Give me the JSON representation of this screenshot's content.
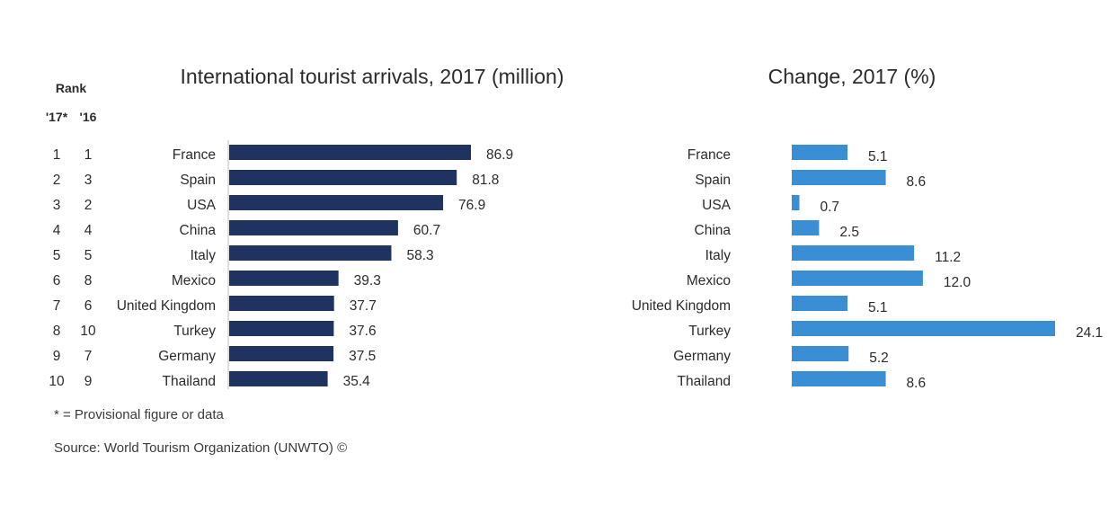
{
  "rank_header": {
    "label": "Rank",
    "col_2017": "'17*",
    "col_2016": "'16"
  },
  "footnotes": {
    "provisional": "* = Provisional figure or data",
    "source": "Source: World Tourism Organization (UNWTO) ©"
  },
  "colors": {
    "arrivals_bar": "#1f3260",
    "change_bar": "#3a8ed3"
  },
  "chart_data": [
    {
      "type": "bar",
      "orientation": "horizontal",
      "title": "International tourist arrivals, 2017 (million)",
      "categories": [
        "France",
        "Spain",
        "USA",
        "China",
        "Italy",
        "Mexico",
        "United Kingdom",
        "Turkey",
        "Germany",
        "Thailand"
      ],
      "values": [
        86.9,
        81.8,
        76.9,
        60.7,
        58.3,
        39.3,
        37.7,
        37.6,
        37.5,
        35.4
      ],
      "value_labels": [
        "86.9",
        "81.8",
        "76.9",
        "60.7",
        "58.3",
        "39.3",
        "37.7",
        "37.6",
        "37.5",
        "35.4"
      ],
      "rank_2017": [
        "1",
        "2",
        "3",
        "4",
        "5",
        "6",
        "7",
        "8",
        "9",
        "10"
      ],
      "rank_2016": [
        "1",
        "3",
        "2",
        "4",
        "5",
        "8",
        "6",
        "10",
        "7",
        "9"
      ],
      "xlim": [
        0,
        100
      ]
    },
    {
      "type": "bar",
      "orientation": "horizontal",
      "title": "Change, 2017 (%)",
      "categories": [
        "France",
        "Spain",
        "USA",
        "China",
        "Italy",
        "Mexico",
        "United Kingdom",
        "Turkey",
        "Germany",
        "Thailand"
      ],
      "values": [
        5.1,
        8.6,
        0.7,
        2.5,
        11.2,
        12.0,
        5.1,
        24.1,
        5.2,
        8.6
      ],
      "value_labels": [
        "5.1",
        "8.6",
        "0.7",
        "2.5",
        "11.2",
        "12.0",
        "5.1",
        "24.1",
        "5.2",
        "8.6"
      ],
      "xlim": [
        0,
        24.1
      ]
    }
  ]
}
